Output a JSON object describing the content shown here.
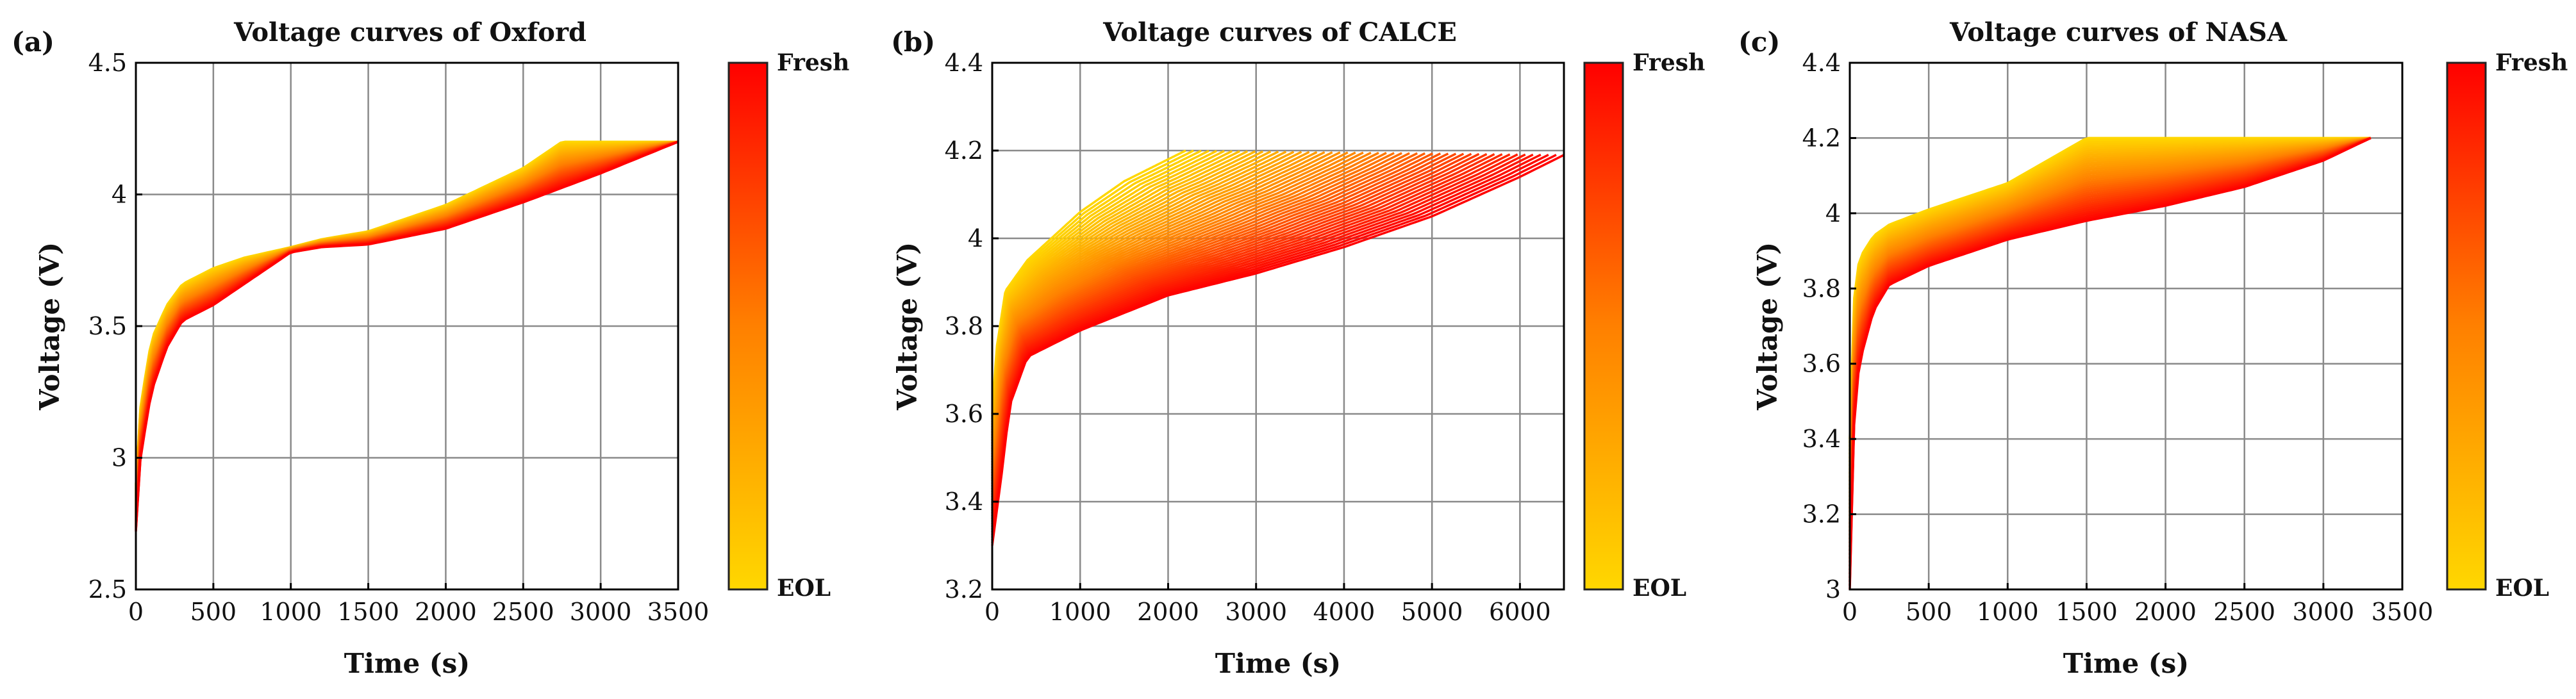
{
  "figure_colors": {
    "fresh": "#ff0000",
    "mid": "#ff8000",
    "eol": "#ffd700",
    "frame": "#000000",
    "grid": "#8a8a8a"
  },
  "chart_data": [
    {
      "type": "line",
      "panel_label": "(a)",
      "title": "Voltage curves of Oxford",
      "xlabel": "Time (s)",
      "ylabel": "Voltage (V)",
      "xlim": [
        0,
        3500
      ],
      "ylim": [
        2.5,
        4.5
      ],
      "xticks": [
        0,
        500,
        1000,
        1500,
        2000,
        2500,
        3000,
        3500
      ],
      "yticks": [
        2.5,
        3,
        3.5,
        4,
        4.5
      ],
      "xtick_labels": [
        "0",
        "500",
        "1000",
        "1500",
        "2000",
        "2500",
        "3000",
        "3500"
      ],
      "ytick_labels": [
        "2.5",
        "3",
        "3.5",
        "4",
        "4.5"
      ],
      "grid": true,
      "colorbar": {
        "top_label": "Fresh",
        "bottom_label": "EOL"
      },
      "n_curves": 40,
      "series": [
        {
          "name": "Fresh",
          "x": [
            0,
            30,
            100,
            200,
            300,
            500,
            700,
            1000,
            1200,
            1500,
            2000,
            2500,
            3000,
            3500
          ],
          "y": [
            2.72,
            3.0,
            3.25,
            3.42,
            3.52,
            3.58,
            3.66,
            3.78,
            3.8,
            3.81,
            3.87,
            3.97,
            4.08,
            4.2
          ]
        },
        {
          "name": "EOL",
          "x": [
            0,
            30,
            100,
            200,
            300,
            500,
            700,
            1000,
            1200,
            1500,
            2000,
            2500,
            2750,
            3500
          ],
          "y": [
            2.9,
            3.2,
            3.45,
            3.58,
            3.66,
            3.72,
            3.76,
            3.8,
            3.83,
            3.86,
            3.96,
            4.1,
            4.2,
            4.2
          ]
        }
      ]
    },
    {
      "type": "line",
      "panel_label": "(b)",
      "title": "Voltage curves of CALCE",
      "xlabel": "Time (s)",
      "ylabel": "Voltage (V)",
      "xlim": [
        0,
        6500
      ],
      "ylim": [
        3.2,
        4.4
      ],
      "xticks": [
        0,
        1000,
        2000,
        3000,
        4000,
        5000,
        6000
      ],
      "yticks": [
        3.2,
        3.4,
        3.6,
        3.8,
        4.0,
        4.2,
        4.4
      ],
      "xtick_labels": [
        "0",
        "1000",
        "2000",
        "3000",
        "4000",
        "5000",
        "6000"
      ],
      "ytick_labels": [
        "3.2",
        "3.4",
        "3.6",
        "3.8",
        "4",
        "4.2",
        "4.4"
      ],
      "grid": true,
      "colorbar": {
        "top_label": "Fresh",
        "bottom_label": "EOL"
      },
      "n_curves": 50,
      "series": [
        {
          "name": "Fresh",
          "x": [
            0,
            100,
            200,
            400,
            1000,
            2000,
            3000,
            4000,
            5000,
            6000,
            6500
          ],
          "y": [
            3.3,
            3.45,
            3.62,
            3.73,
            3.79,
            3.87,
            3.92,
            3.98,
            4.05,
            4.14,
            4.19
          ]
        },
        {
          "name": "EOL",
          "x": [
            0,
            50,
            150,
            400,
            1000,
            1500,
            2200
          ],
          "y": [
            3.6,
            3.75,
            3.88,
            3.95,
            4.06,
            4.13,
            4.2
          ]
        }
      ]
    },
    {
      "type": "line",
      "panel_label": "(c)",
      "title": "Voltage curves of NASA",
      "xlabel": "Time (s)",
      "ylabel": "Voltage (V)",
      "xlim": [
        0,
        3500
      ],
      "ylim": [
        3.0,
        4.4
      ],
      "xticks": [
        0,
        500,
        1000,
        1500,
        2000,
        2500,
        3000,
        3500
      ],
      "yticks": [
        3.0,
        3.2,
        3.4,
        3.6,
        3.8,
        4.0,
        4.2,
        4.4
      ],
      "xtick_labels": [
        "0",
        "500",
        "1000",
        "1500",
        "2000",
        "2500",
        "3000",
        "3500"
      ],
      "ytick_labels": [
        "3",
        "3.2",
        "3.4",
        "3.6",
        "3.8",
        "4",
        "4.2",
        "4.4"
      ],
      "grid": true,
      "colorbar": {
        "top_label": "Fresh",
        "bottom_label": "EOL"
      },
      "n_curves": 40,
      "series": [
        {
          "name": "Fresh",
          "x": [
            0,
            20,
            60,
            150,
            250,
            500,
            1000,
            1500,
            2000,
            2500,
            3000,
            3300
          ],
          "y": [
            3.0,
            3.4,
            3.6,
            3.74,
            3.81,
            3.86,
            3.93,
            3.98,
            4.02,
            4.07,
            4.14,
            4.2
          ]
        },
        {
          "name": "EOL",
          "x": [
            0,
            20,
            60,
            150,
            250,
            500,
            1000,
            1500,
            3300
          ],
          "y": [
            3.4,
            3.75,
            3.88,
            3.94,
            3.97,
            4.01,
            4.08,
            4.2,
            4.2
          ]
        }
      ]
    }
  ]
}
